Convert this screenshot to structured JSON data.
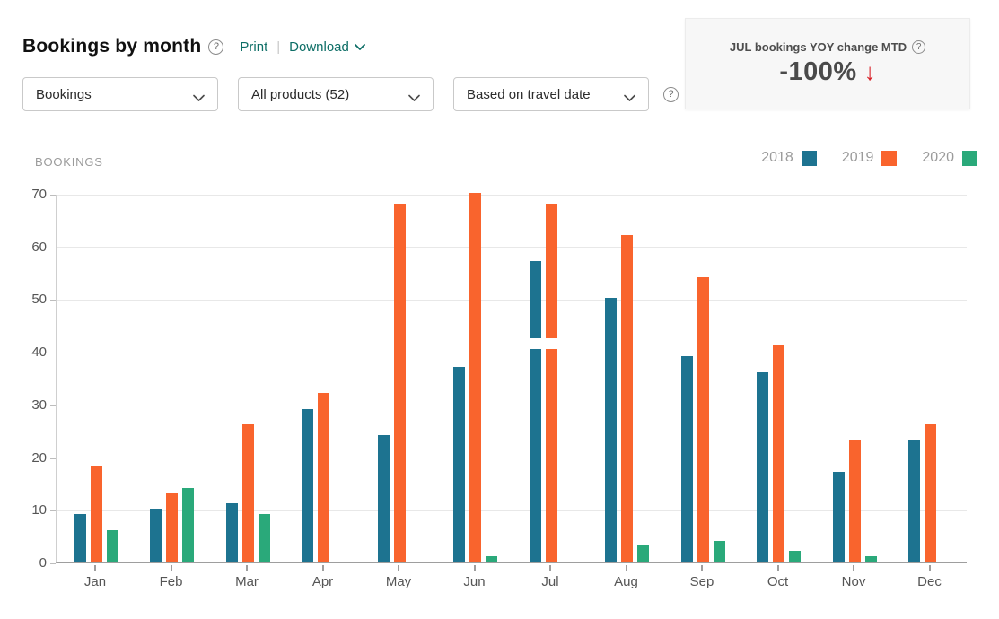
{
  "header": {
    "title": "Bookings by month",
    "help_icon": "?",
    "print_label": "Print",
    "divider": "|",
    "download_label": "Download"
  },
  "kpi_card": {
    "title": "JUL bookings YOY change MTD",
    "help_icon": "?",
    "value": "-100%",
    "trend": "down",
    "trend_arrow": "↓",
    "trend_color": "#d8232a"
  },
  "filters": {
    "metric": {
      "value": "Bookings"
    },
    "products": {
      "value": "All products (52)"
    },
    "date_basis": {
      "value": "Based on travel date"
    },
    "help_icon": "?"
  },
  "chart_data": {
    "type": "bar",
    "title": "BOOKINGS",
    "ylabel": "BOOKINGS",
    "xlabel": "",
    "ylim": [
      0,
      70
    ],
    "yticks": [
      0,
      10,
      20,
      30,
      40,
      50,
      60,
      70
    ],
    "grid": true,
    "legend_position": "top-right",
    "categories": [
      "Jan",
      "Feb",
      "Mar",
      "Apr",
      "May",
      "Jun",
      "Jul",
      "Aug",
      "Sep",
      "Oct",
      "Nov",
      "Dec"
    ],
    "series": [
      {
        "name": "2018",
        "color": "#1d7390",
        "values": [
          9,
          10,
          11,
          29,
          24,
          37,
          57,
          50,
          39,
          36,
          17,
          23
        ]
      },
      {
        "name": "2019",
        "color": "#f9642d",
        "values": [
          18,
          13,
          26,
          32,
          68,
          70,
          68,
          62,
          54,
          41,
          23,
          26
        ]
      },
      {
        "name": "2020",
        "color": "#2aa97a",
        "values": [
          6,
          14,
          9,
          0,
          0,
          1,
          0,
          3,
          4,
          2,
          1,
          0
        ]
      }
    ],
    "mtd_marker": {
      "month": "Jul",
      "value": 40.3,
      "span": 2.1,
      "applies_to": [
        "2018",
        "2019"
      ]
    }
  }
}
